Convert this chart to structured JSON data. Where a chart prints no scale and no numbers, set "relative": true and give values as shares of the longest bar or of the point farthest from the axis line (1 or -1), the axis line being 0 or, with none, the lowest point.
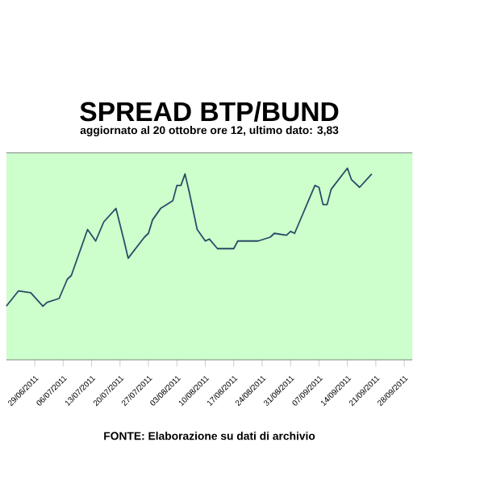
{
  "chart_data": {
    "type": "line",
    "title": "SPREAD BTP/BUND",
    "subtitle": "aggiornato al 20 ottobre ore 12, ultimo dato: 3,83",
    "annotations": [
      "FONTE: Elaborazione su dati di archivio"
    ],
    "relative": true,
    "tick_labels": "x",
    "grid": false,
    "marker": "none",
    "line_style": "solid",
    "xlim": [
      "2011-06-22",
      "2011-09-30"
    ],
    "xticks": [
      {
        "value": "2011-06-29",
        "label": "29/06/2011"
      },
      {
        "value": "2011-07-06",
        "label": "06/07/2011"
      },
      {
        "value": "2011-07-13",
        "label": "13/07/2011"
      },
      {
        "value": "2011-07-20",
        "label": "20/07/2011"
      },
      {
        "value": "2011-07-27",
        "label": "27/07/2011"
      },
      {
        "value": "2011-08-03",
        "label": "03/08/2011"
      },
      {
        "value": "2011-08-10",
        "label": "10/08/2011"
      },
      {
        "value": "2011-08-17",
        "label": "17/08/2011"
      },
      {
        "value": "2011-08-24",
        "label": "24/08/2011"
      },
      {
        "value": "2011-08-31",
        "label": "31/08/2011"
      },
      {
        "value": "2011-09-07",
        "label": "07/09/2011"
      },
      {
        "value": "2011-09-14",
        "label": "14/09/2011"
      },
      {
        "value": "2011-09-21",
        "label": "21/09/2011"
      },
      {
        "value": "2011-09-28",
        "label": "28/09/2011"
      }
    ],
    "x": [
      "2011-06-22",
      "2011-06-25",
      "2011-06-28",
      "2011-07-01",
      "2011-07-02",
      "2011-07-05",
      "2011-07-07",
      "2011-07-08",
      "2011-07-12",
      "2011-07-14",
      "2011-07-16",
      "2011-07-19",
      "2011-07-21",
      "2011-07-22",
      "2011-07-26",
      "2011-07-27",
      "2011-07-28",
      "2011-07-30",
      "2011-08-02",
      "2011-08-03",
      "2011-08-04",
      "2011-08-05",
      "2011-08-06",
      "2011-08-08",
      "2011-08-10",
      "2011-08-11",
      "2011-08-13",
      "2011-08-17",
      "2011-08-18",
      "2011-08-23",
      "2011-08-26",
      "2011-08-27",
      "2011-08-30",
      "2011-08-31",
      "2011-09-01",
      "2011-09-03",
      "2011-09-06",
      "2011-09-07",
      "2011-09-08",
      "2011-09-09",
      "2011-09-10",
      "2011-09-14",
      "2011-09-15",
      "2011-09-17",
      "2011-09-20"
    ],
    "series": [
      {
        "color": "#2a4a66",
        "values": [
          0.28,
          0.36,
          0.35,
          0.28,
          0.3,
          0.32,
          0.42,
          0.44,
          0.68,
          0.62,
          0.72,
          0.79,
          0.62,
          0.53,
          0.64,
          0.66,
          0.73,
          0.79,
          0.83,
          0.91,
          0.91,
          0.97,
          0.88,
          0.68,
          0.62,
          0.63,
          0.58,
          0.58,
          0.62,
          0.62,
          0.64,
          0.66,
          0.65,
          0.67,
          0.66,
          0.76,
          0.91,
          0.9,
          0.81,
          0.81,
          0.89,
          1,
          0.94,
          0.9,
          0.97
        ]
      }
    ]
  }
}
